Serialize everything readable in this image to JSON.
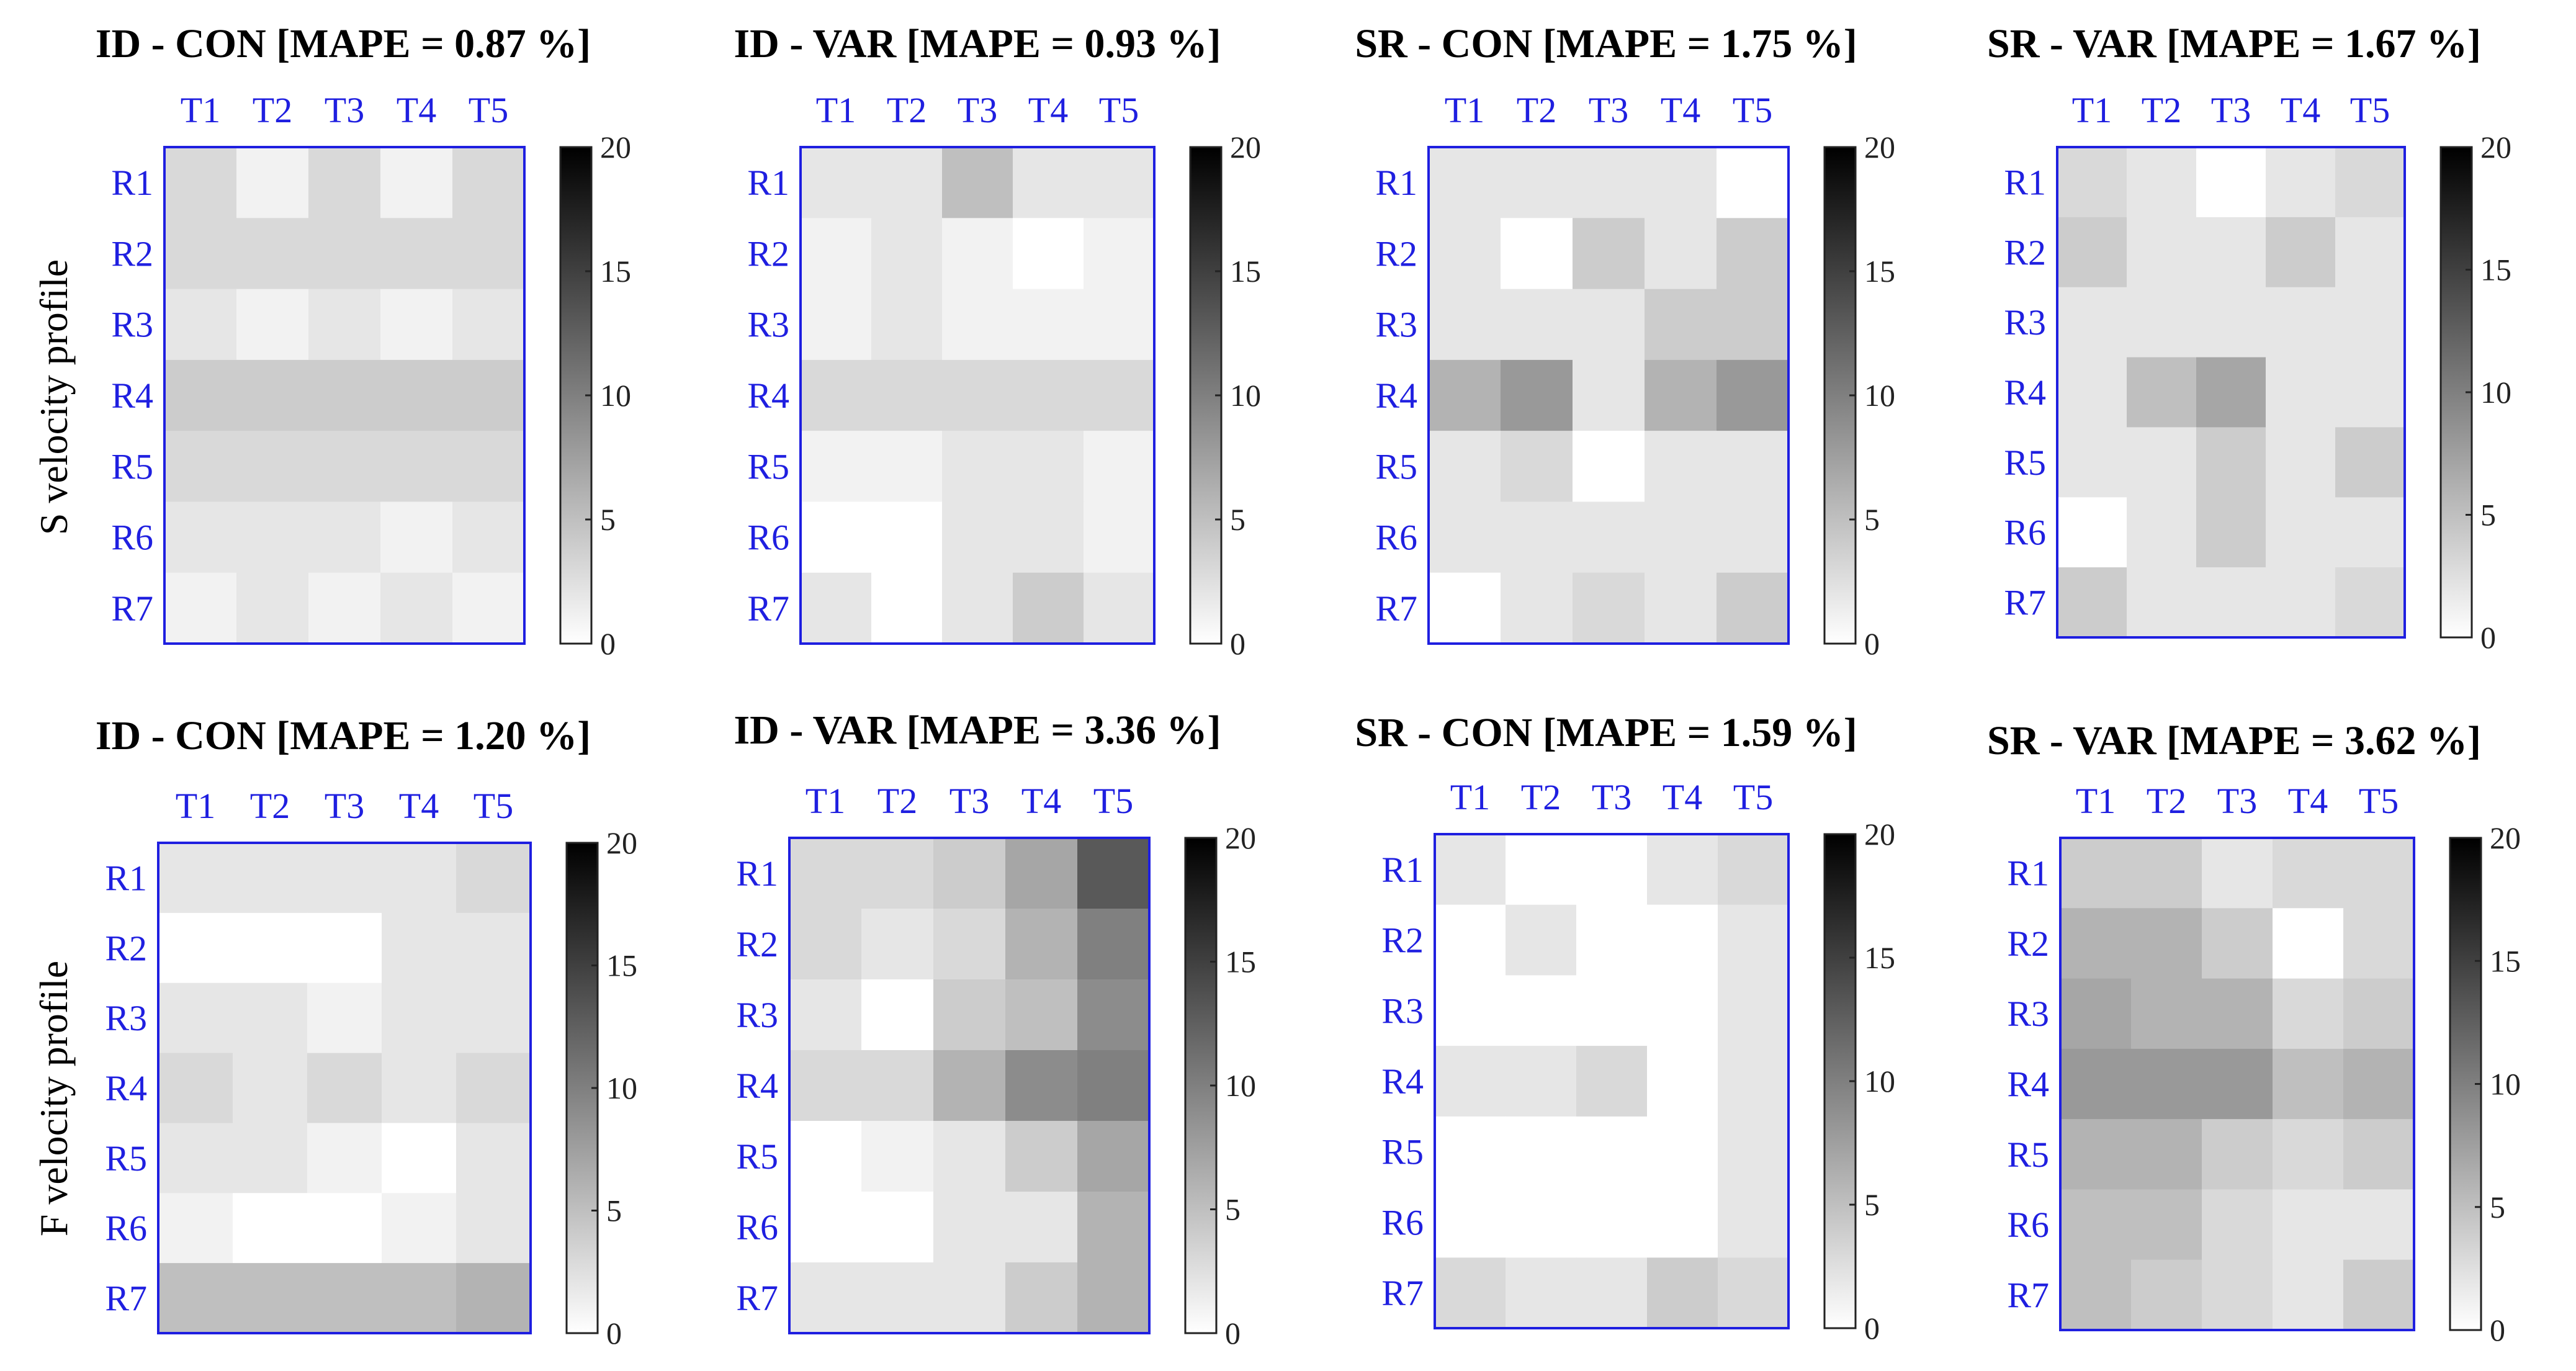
{
  "figure": {
    "row_labels": [
      "S velocity profile",
      "F velocity profile"
    ]
  },
  "chart_data": [
    {
      "type": "heatmap",
      "title": "ID - CON [MAPE = 0.87 %]",
      "x": [
        "T1",
        "T2",
        "T3",
        "T4",
        "T5"
      ],
      "y": [
        "R1",
        "R2",
        "R3",
        "R4",
        "R5",
        "R6",
        "R7"
      ],
      "colorbar": {
        "range": [
          0,
          20
        ],
        "ticks": [
          "20",
          "15",
          "10",
          "5",
          "0"
        ],
        "colormap": "white-to-black"
      },
      "values": [
        [
          3,
          1,
          3,
          1,
          3
        ],
        [
          3,
          3,
          3,
          3,
          3
        ],
        [
          2,
          1,
          2,
          1,
          2
        ],
        [
          4,
          4,
          4,
          4,
          4
        ],
        [
          3,
          3,
          3,
          3,
          3
        ],
        [
          2,
          2,
          2,
          1,
          2
        ],
        [
          1,
          2,
          1,
          2,
          1
        ]
      ]
    },
    {
      "type": "heatmap",
      "title": "ID - VAR [MAPE = 0.93 %]",
      "x": [
        "T1",
        "T2",
        "T3",
        "T4",
        "T5"
      ],
      "y": [
        "R1",
        "R2",
        "R3",
        "R4",
        "R5",
        "R6",
        "R7"
      ],
      "colorbar": {
        "range": [
          0,
          20
        ],
        "ticks": [
          "20",
          "15",
          "10",
          "5",
          "0"
        ],
        "colormap": "white-to-black"
      },
      "values": [
        [
          2,
          2,
          5,
          2,
          2
        ],
        [
          1,
          2,
          1,
          0,
          1
        ],
        [
          1,
          2,
          1,
          1,
          1
        ],
        [
          3,
          3,
          3,
          3,
          3
        ],
        [
          1,
          1,
          2,
          2,
          1
        ],
        [
          0,
          0,
          2,
          2,
          1
        ],
        [
          2,
          0,
          2,
          4,
          2
        ]
      ]
    },
    {
      "type": "heatmap",
      "title": "SR - CON [MAPE = 1.75 %]",
      "x": [
        "T1",
        "T2",
        "T3",
        "T4",
        "T5"
      ],
      "y": [
        "R1",
        "R2",
        "R3",
        "R4",
        "R5",
        "R6",
        "R7"
      ],
      "colorbar": {
        "range": [
          0,
          20
        ],
        "ticks": [
          "20",
          "15",
          "10",
          "5",
          "0"
        ],
        "colormap": "white-to-black"
      },
      "values": [
        [
          2,
          2,
          2,
          2,
          0
        ],
        [
          2,
          0,
          4,
          2,
          4
        ],
        [
          2,
          2,
          2,
          4,
          4
        ],
        [
          6,
          8,
          2,
          6,
          8
        ],
        [
          2,
          3,
          0,
          2,
          2
        ],
        [
          2,
          2,
          2,
          2,
          2
        ],
        [
          0,
          2,
          3,
          2,
          4
        ]
      ]
    },
    {
      "type": "heatmap",
      "title": "SR - VAR [MAPE = 1.67 %]",
      "x": [
        "T1",
        "T2",
        "T3",
        "T4",
        "T5"
      ],
      "y": [
        "R1",
        "R2",
        "R3",
        "R4",
        "R5",
        "R6",
        "R7"
      ],
      "colorbar": {
        "range": [
          0,
          20
        ],
        "ticks": [
          "20",
          "15",
          "10",
          "5",
          "0"
        ],
        "colormap": "white-to-black"
      },
      "values": [
        [
          3,
          2,
          0,
          2,
          3
        ],
        [
          4,
          2,
          2,
          4,
          2
        ],
        [
          2,
          2,
          2,
          2,
          2
        ],
        [
          2,
          5,
          7,
          2,
          2
        ],
        [
          2,
          2,
          4,
          2,
          4
        ],
        [
          0,
          2,
          4,
          2,
          2
        ],
        [
          4,
          2,
          2,
          2,
          3
        ]
      ]
    },
    {
      "type": "heatmap",
      "title": "ID - CON [MAPE = 1.20 %]",
      "x": [
        "T1",
        "T2",
        "T3",
        "T4",
        "T5"
      ],
      "y": [
        "R1",
        "R2",
        "R3",
        "R4",
        "R5",
        "R6",
        "R7"
      ],
      "colorbar": {
        "range": [
          0,
          20
        ],
        "ticks": [
          "20",
          "15",
          "10",
          "5",
          "0"
        ],
        "colormap": "white-to-black"
      },
      "values": [
        [
          2,
          2,
          2,
          2,
          3
        ],
        [
          0,
          0,
          0,
          2,
          2
        ],
        [
          2,
          2,
          1,
          2,
          2
        ],
        [
          3,
          2,
          3,
          2,
          3
        ],
        [
          2,
          2,
          1,
          0,
          2
        ],
        [
          1,
          0,
          0,
          1,
          2
        ],
        [
          5,
          5,
          5,
          5,
          6
        ]
      ]
    },
    {
      "type": "heatmap",
      "title": "ID - VAR [MAPE = 3.36 %]",
      "x": [
        "T1",
        "T2",
        "T3",
        "T4",
        "T5"
      ],
      "y": [
        "R1",
        "R2",
        "R3",
        "R4",
        "R5",
        "R6",
        "R7"
      ],
      "colorbar": {
        "range": [
          0,
          20
        ],
        "ticks": [
          "20",
          "15",
          "10",
          "5",
          "0"
        ],
        "colormap": "white-to-black"
      },
      "values": [
        [
          3,
          3,
          4,
          7,
          13
        ],
        [
          3,
          2,
          3,
          6,
          10
        ],
        [
          2,
          0,
          4,
          5,
          9
        ],
        [
          3,
          3,
          6,
          9,
          10
        ],
        [
          0,
          1,
          2,
          4,
          7
        ],
        [
          0,
          0,
          2,
          2,
          6
        ],
        [
          2,
          2,
          2,
          4,
          6
        ]
      ]
    },
    {
      "type": "heatmap",
      "title": "SR - CON [MAPE = 1.59 %]",
      "x": [
        "T1",
        "T2",
        "T3",
        "T4",
        "T5"
      ],
      "y": [
        "R1",
        "R2",
        "R3",
        "R4",
        "R5",
        "R6",
        "R7"
      ],
      "colorbar": {
        "range": [
          0,
          20
        ],
        "ticks": [
          "20",
          "15",
          "10",
          "5",
          "0"
        ],
        "colormap": "white-to-black"
      },
      "values": [
        [
          2,
          0,
          0,
          2,
          3
        ],
        [
          0,
          2,
          0,
          0,
          2
        ],
        [
          0,
          0,
          0,
          0,
          2
        ],
        [
          2,
          2,
          3,
          0,
          2
        ],
        [
          0,
          0,
          0,
          0,
          2
        ],
        [
          0,
          0,
          0,
          0,
          2
        ],
        [
          3,
          2,
          2,
          4,
          3
        ]
      ]
    },
    {
      "type": "heatmap",
      "title": "SR - VAR [MAPE = 3.62 %]",
      "x": [
        "T1",
        "T2",
        "T3",
        "T4",
        "T5"
      ],
      "y": [
        "R1",
        "R2",
        "R3",
        "R4",
        "R5",
        "R6",
        "R7"
      ],
      "colorbar": {
        "range": [
          0,
          20
        ],
        "ticks": [
          "20",
          "15",
          "10",
          "5",
          "0"
        ],
        "colormap": "white-to-black"
      },
      "values": [
        [
          4,
          4,
          2,
          3,
          3
        ],
        [
          6,
          6,
          4,
          0,
          3
        ],
        [
          7,
          6,
          6,
          3,
          4
        ],
        [
          8,
          8,
          8,
          5,
          6
        ],
        [
          6,
          6,
          4,
          3,
          4
        ],
        [
          5,
          5,
          3,
          2,
          2
        ],
        [
          5,
          4,
          3,
          2,
          4
        ]
      ]
    }
  ]
}
